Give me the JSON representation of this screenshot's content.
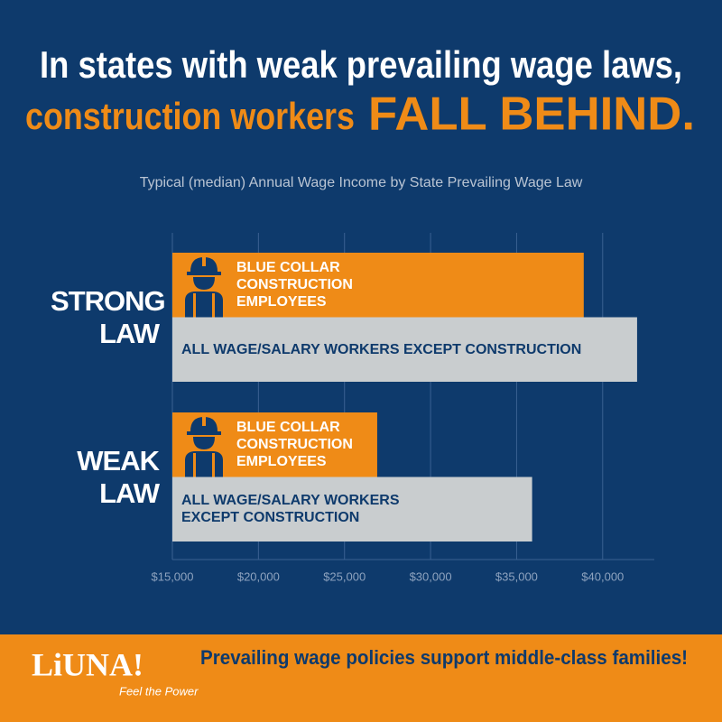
{
  "chart_data": {
    "type": "bar",
    "orientation": "horizontal",
    "title_line1": "In states with weak prevailing wage laws,",
    "title_line2": "construction workers",
    "title_emphasis": "FALL BEHIND.",
    "subtitle": "Typical (median) Annual Wage Income by State Prevailing Wage Law",
    "categories": [
      "STRONG LAW",
      "WEAK LAW"
    ],
    "series": [
      {
        "name": "BLUE COLLAR CONSTRUCTION EMPLOYEES",
        "color": "#ef8b17",
        "values": [
          38900,
          26900
        ]
      },
      {
        "name": "ALL WAGE/SALARY WORKERS EXCEPT CONSTRUCTION",
        "color": "#c9cdcf",
        "values": [
          42000,
          35900
        ]
      }
    ],
    "xlim": [
      15000,
      43000
    ],
    "xticks": [
      {
        "value": 15000,
        "label": "$15,000"
      },
      {
        "value": 20000,
        "label": "$20,000"
      },
      {
        "value": 25000,
        "label": "$25,000"
      },
      {
        "value": 30000,
        "label": "$30,000"
      },
      {
        "value": 35000,
        "label": "$35,000"
      },
      {
        "value": 40000,
        "label": "$40,000"
      }
    ],
    "grid": true
  },
  "footer": {
    "logo": "LiUNA!",
    "tagline": "Feel the Power",
    "message": "Prevailing wage policies support middle-class families!"
  }
}
